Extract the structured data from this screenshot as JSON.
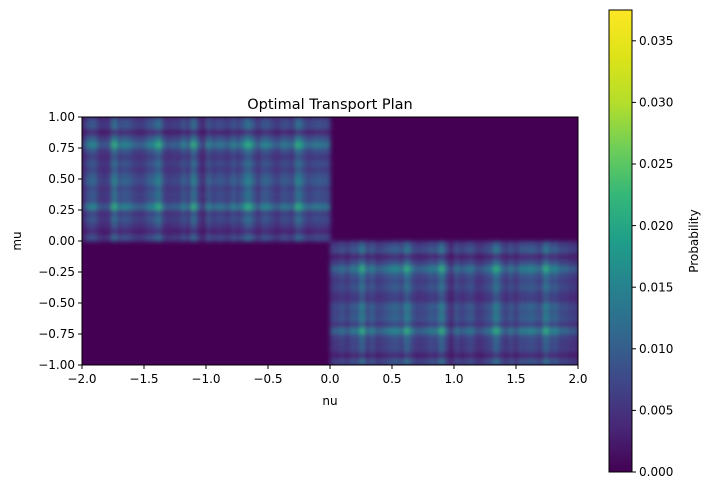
{
  "chart_data": {
    "type": "heatmap",
    "title": "Optimal Transport Plan",
    "xlabel": "nu",
    "ylabel": "mu",
    "xlim": [
      -2.0,
      2.0
    ],
    "ylim": [
      -1.0,
      1.0
    ],
    "x_ticks": [
      "−2.0",
      "−1.5",
      "−1.0",
      "−0.5",
      "0.0",
      "0.5",
      "1.0",
      "1.5",
      "2.0"
    ],
    "x_tick_values": [
      -2.0,
      -1.5,
      -1.0,
      -0.5,
      0.0,
      0.5,
      1.0,
      1.5,
      2.0
    ],
    "y_ticks": [
      "−1.00",
      "−0.75",
      "−0.50",
      "−0.25",
      "0.00",
      "0.25",
      "0.50",
      "0.75",
      "1.00"
    ],
    "y_tick_values": [
      -1.0,
      -0.75,
      -0.5,
      -0.25,
      0.0,
      0.25,
      0.5,
      0.75,
      1.0
    ],
    "colormap": "viridis",
    "colorbar": {
      "label": "Probability",
      "range": [
        0.0,
        0.0375
      ],
      "ticks": [
        "0.000",
        "0.005",
        "0.010",
        "0.015",
        "0.020",
        "0.025",
        "0.030",
        "0.035"
      ],
      "tick_values": [
        0.0,
        0.005,
        0.01,
        0.015,
        0.02,
        0.025,
        0.03,
        0.035
      ]
    },
    "blocks": [
      {
        "x_range": [
          -2.0,
          0.0
        ],
        "y_range": [
          0.0,
          1.0
        ],
        "level": "high",
        "typical_value": 0.012
      },
      {
        "x_range": [
          0.0,
          2.0
        ],
        "y_range": [
          -1.0,
          0.0
        ],
        "level": "high",
        "typical_value": 0.012
      },
      {
        "x_range": [
          0.0,
          2.0
        ],
        "y_range": [
          0.0,
          1.0
        ],
        "level": "zero",
        "typical_value": 0.0
      },
      {
        "x_range": [
          -2.0,
          0.0
        ],
        "y_range": [
          -1.0,
          0.0
        ],
        "level": "zero",
        "typical_value": 0.0
      }
    ],
    "peak_value": 0.0375
  }
}
